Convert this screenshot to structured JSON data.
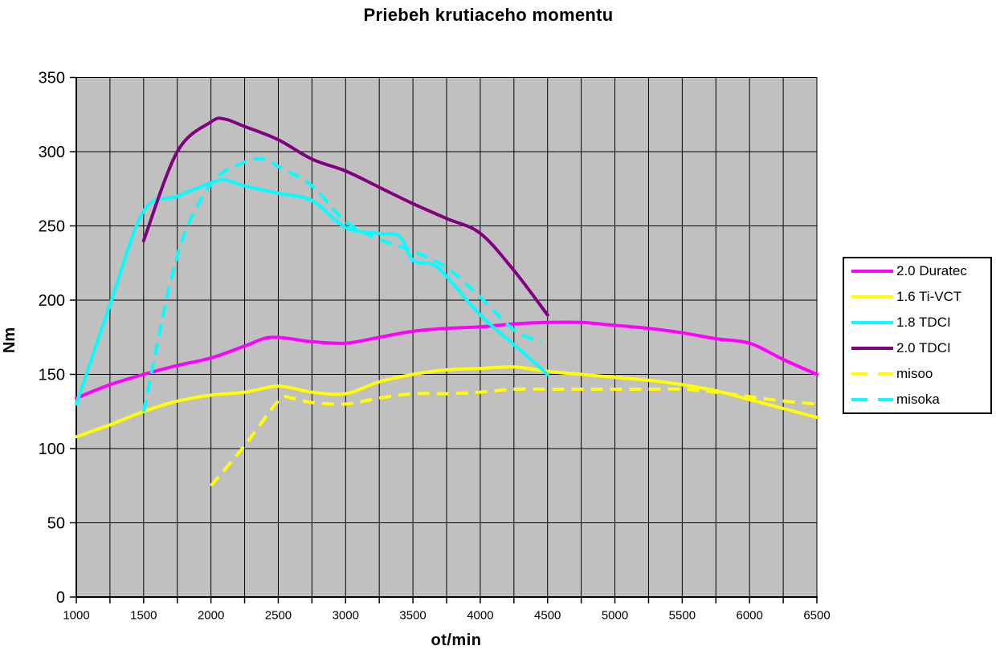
{
  "chart_data": {
    "type": "line",
    "title": "Priebeh krutiaceho momentu",
    "xlabel": "ot/min",
    "ylabel": "Nm",
    "xlim": [
      1000,
      6500
    ],
    "ylim": [
      0,
      350
    ],
    "x_ticks": [
      1000,
      1500,
      2000,
      2500,
      3000,
      3500,
      4000,
      4500,
      5000,
      5500,
      6000,
      6500
    ],
    "y_ticks": [
      0,
      50,
      100,
      150,
      200,
      250,
      300,
      350
    ],
    "x_grid_step": 250,
    "y_grid_step": 50,
    "grid": true,
    "plot_bg": "#c0c0c0",
    "grid_color": "#000000",
    "axis_color": "#000000",
    "legend_position": "right",
    "series": [
      {
        "name": "2.0 Duratec",
        "color": "#ff00ff",
        "style": "solid",
        "points": [
          [
            1000,
            134
          ],
          [
            1250,
            143
          ],
          [
            1500,
            150
          ],
          [
            1750,
            156
          ],
          [
            2000,
            161
          ],
          [
            2250,
            169
          ],
          [
            2450,
            175
          ],
          [
            2750,
            172
          ],
          [
            3000,
            171
          ],
          [
            3250,
            175
          ],
          [
            3500,
            179
          ],
          [
            3750,
            181
          ],
          [
            4000,
            182
          ],
          [
            4250,
            184
          ],
          [
            4500,
            185
          ],
          [
            4750,
            185
          ],
          [
            5000,
            183
          ],
          [
            5250,
            181
          ],
          [
            5500,
            178
          ],
          [
            5750,
            174
          ],
          [
            6000,
            171
          ],
          [
            6250,
            160
          ],
          [
            6500,
            150
          ]
        ]
      },
      {
        "name": "1.6 Ti-VCT",
        "color": "#ffff00",
        "style": "solid",
        "points": [
          [
            1000,
            108
          ],
          [
            1250,
            116
          ],
          [
            1500,
            125
          ],
          [
            1750,
            132
          ],
          [
            2000,
            136
          ],
          [
            2250,
            138
          ],
          [
            2500,
            142
          ],
          [
            2750,
            138
          ],
          [
            3000,
            137
          ],
          [
            3250,
            145
          ],
          [
            3500,
            150
          ],
          [
            3750,
            153
          ],
          [
            4000,
            154
          ],
          [
            4250,
            155
          ],
          [
            4500,
            152
          ],
          [
            4750,
            150
          ],
          [
            5000,
            148
          ],
          [
            5250,
            146
          ],
          [
            5500,
            143
          ],
          [
            5750,
            139
          ],
          [
            6000,
            133
          ],
          [
            6250,
            127
          ],
          [
            6500,
            121
          ]
        ]
      },
      {
        "name": "1.8 TDCI",
        "color": "#00ffff",
        "style": "solid",
        "points": [
          [
            1000,
            130
          ],
          [
            1250,
            197
          ],
          [
            1500,
            260
          ],
          [
            1750,
            270
          ],
          [
            2000,
            279
          ],
          [
            2100,
            281
          ],
          [
            2250,
            277
          ],
          [
            2500,
            272
          ],
          [
            2750,
            267
          ],
          [
            3000,
            249
          ],
          [
            3250,
            245
          ],
          [
            3400,
            243
          ],
          [
            3500,
            227
          ],
          [
            3650,
            224
          ],
          [
            3750,
            216
          ],
          [
            4000,
            190
          ],
          [
            4250,
            170
          ],
          [
            4500,
            150
          ]
        ]
      },
      {
        "name": "2.0 TDCI",
        "color": "#800080",
        "style": "solid",
        "points": [
          [
            1500,
            240
          ],
          [
            1750,
            300
          ],
          [
            2000,
            320
          ],
          [
            2100,
            322
          ],
          [
            2250,
            317
          ],
          [
            2500,
            308
          ],
          [
            2750,
            295
          ],
          [
            3000,
            287
          ],
          [
            3250,
            276
          ],
          [
            3500,
            265
          ],
          [
            3750,
            255
          ],
          [
            4000,
            245
          ],
          [
            4250,
            220
          ],
          [
            4500,
            190
          ]
        ]
      },
      {
        "name": "misoo",
        "color": "#ffff00",
        "style": "dashed",
        "points": [
          [
            2000,
            75
          ],
          [
            2250,
            102
          ],
          [
            2500,
            132
          ],
          [
            2600,
            134
          ],
          [
            2750,
            131
          ],
          [
            3000,
            130
          ],
          [
            3250,
            134
          ],
          [
            3500,
            137
          ],
          [
            3750,
            137
          ],
          [
            4000,
            138
          ],
          [
            4250,
            140
          ],
          [
            4500,
            140
          ],
          [
            4750,
            140
          ],
          [
            5000,
            140
          ],
          [
            5250,
            140
          ],
          [
            5500,
            140
          ],
          [
            5750,
            138
          ],
          [
            6000,
            135
          ],
          [
            6250,
            132
          ],
          [
            6500,
            130
          ]
        ]
      },
      {
        "name": "misoka",
        "color": "#00ffff",
        "style": "dashed",
        "points": [
          [
            1500,
            125
          ],
          [
            1750,
            230
          ],
          [
            2000,
            278
          ],
          [
            2250,
            293
          ],
          [
            2400,
            295
          ],
          [
            2500,
            290
          ],
          [
            2750,
            277
          ],
          [
            3000,
            253
          ],
          [
            3250,
            241
          ],
          [
            3500,
            233
          ],
          [
            3750,
            222
          ],
          [
            4000,
            202
          ],
          [
            4250,
            180
          ],
          [
            4450,
            172
          ]
        ]
      }
    ]
  }
}
